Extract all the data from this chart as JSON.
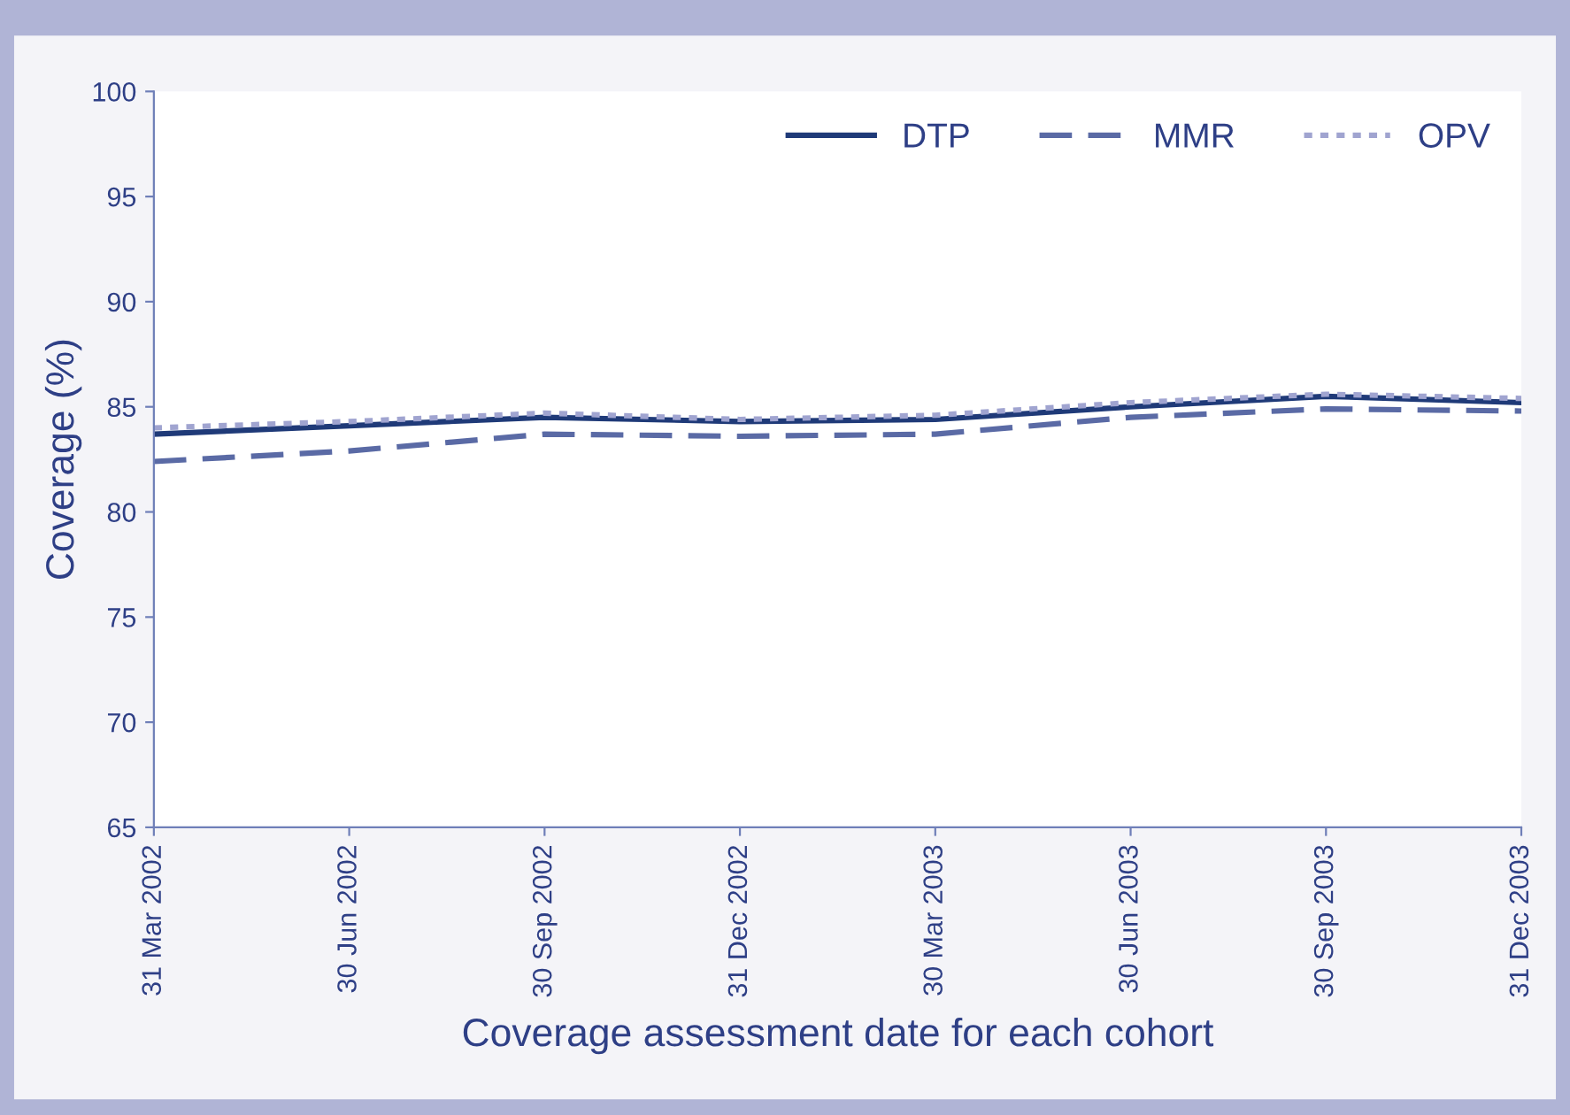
{
  "chart_data": {
    "type": "line",
    "xlabel": "Coverage assessment date for each cohort",
    "ylabel": "Coverage (%)",
    "categories": [
      "31 Mar 2002",
      "30 Jun 2002",
      "30 Sep 2002",
      "31 Dec 2002",
      "30 Mar 2003",
      "30 Jun 2003",
      "30 Sep 2003",
      "31 Dec 2003"
    ],
    "series": [
      {
        "name": "DTP",
        "color": "#1f3a78",
        "line_style": "solid",
        "values": [
          83.7,
          84.1,
          84.5,
          84.3,
          84.4,
          85.0,
          85.5,
          85.2
        ]
      },
      {
        "name": "MMR",
        "color": "#5a6aa5",
        "line_style": "dashed",
        "values": [
          82.4,
          82.9,
          83.7,
          83.6,
          83.7,
          84.5,
          84.9,
          84.8
        ]
      },
      {
        "name": "OPV",
        "color": "#a0a4d0",
        "line_style": "dotted",
        "values": [
          84.0,
          84.3,
          84.7,
          84.4,
          84.6,
          85.2,
          85.6,
          85.4
        ]
      }
    ],
    "ylim": [
      65,
      100
    ],
    "yticks": [
      65,
      70,
      75,
      80,
      85,
      90,
      95,
      100
    ],
    "grid": false,
    "legend": "top right",
    "marker": "none"
  }
}
